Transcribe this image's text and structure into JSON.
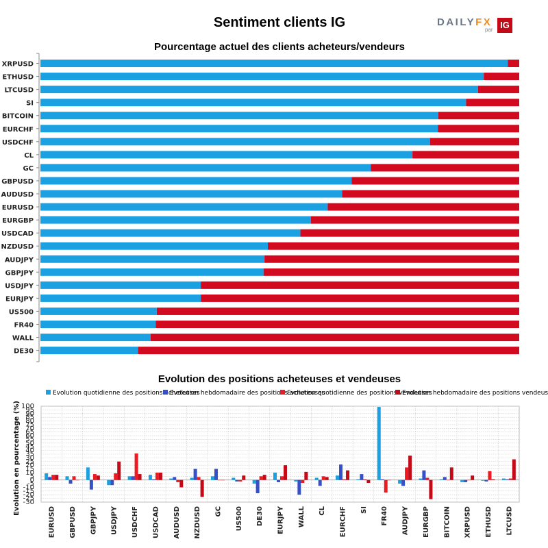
{
  "header": {
    "title": "Sentiment clients IG",
    "logo_brand_a": "DAILY",
    "logo_brand_b": "FX",
    "logo_par": "par",
    "logo_ig": "IG"
  },
  "colors": {
    "buyers": "#1ba0e2",
    "sellers": "#d10a1f",
    "daily_buy": "#1ba0e2",
    "weekly_buy": "#3651c8",
    "daily_sell": "#ed1c24",
    "weekly_sell": "#c40a17"
  },
  "chart_data": [
    {
      "type": "bar",
      "orientation": "horizontal",
      "stacked": true,
      "title": "Pourcentage actuel des clients acheteurs/vendeurs",
      "categories": [
        "XRPUSD",
        "ETHUSD",
        "LTCUSD",
        "SI",
        "BITCOIN",
        "EURCHF",
        "USDCHF",
        "CL",
        "GC",
        "GBPUSD",
        "AUDUSD",
        "EURUSD",
        "EURGBP",
        "USDCAD",
        "NZDUSD",
        "AUDJPY",
        "GBPJPY",
        "USDJPY",
        "EURJPY",
        "US500",
        "FR40",
        "WALL",
        "DE30"
      ],
      "series": [
        {
          "values": [
            97.6,
            92.6,
            91.4,
            88.9,
            83.1,
            83.0,
            81.4,
            77.7,
            69.0,
            65.0,
            63.0,
            60.0,
            56.5,
            54.3,
            47.5,
            46.8,
            46.6,
            33.5,
            33.5,
            24.3,
            24.1,
            23.0,
            20.4
          ]
        },
        {
          "values": [
            2.4,
            7.4,
            8.6,
            11.1,
            16.9,
            17.0,
            18.6,
            22.3,
            31.0,
            35.0,
            37.0,
            40.0,
            43.5,
            45.7,
            52.5,
            53.2,
            53.4,
            66.5,
            66.5,
            75.7,
            75.9,
            77.0,
            79.6
          ]
        }
      ],
      "xlim": [
        0,
        100
      ]
    },
    {
      "type": "bar",
      "title": "Evolution des positions acheteuses et vendeuses",
      "ylabel": "Evolution en pourcentage (%)",
      "ylim": [
        -30,
        100
      ],
      "yticks": [
        -30,
        -25,
        -20,
        -15,
        -10,
        -5,
        0,
        5,
        10,
        15,
        20,
        25,
        30,
        35,
        40,
        45,
        50,
        55,
        60,
        65,
        70,
        75,
        80,
        85,
        90,
        95,
        100
      ],
      "grid": true,
      "legend_position": "top",
      "categories": [
        "EURUSD",
        "GBPUSD",
        "GBPJPY",
        "USDJPY",
        "USDCHF",
        "USDCAD",
        "AUDUSD",
        "NZDUSD",
        "GC",
        "US500",
        "DE30",
        "EURJPY",
        "WALL",
        "CL",
        "EURCHF",
        "SI",
        "FR40",
        "AUDJPY",
        "EURGBP",
        "BITCOIN",
        "XRPUSD",
        "ETHUSD",
        "LTCUSD"
      ],
      "series": [
        {
          "name": "Evolution quotidienne des positions acheteuses",
          "values": [
            9,
            5,
            17,
            -7,
            5,
            7,
            2,
            3,
            5,
            3,
            -5,
            10,
            -2,
            3,
            6,
            1,
            99,
            -5,
            2,
            1,
            -3,
            -1,
            2
          ]
        },
        {
          "name": "Evolution hebdomadaire des positions acheteuses",
          "values": [
            4,
            -5,
            -13,
            -7,
            5,
            1,
            4,
            15,
            15,
            -2,
            -18,
            -3,
            -20,
            -8,
            21,
            8,
            1,
            -8,
            13,
            4,
            -3,
            -2,
            1
          ]
        },
        {
          "name": "Evolution quotidienne des positions vendeuses",
          "values": [
            7,
            5,
            8,
            9,
            36,
            10,
            -3,
            4,
            0,
            -2,
            5,
            5,
            -4,
            5,
            1,
            1,
            -17,
            17,
            3,
            0,
            0,
            12,
            2
          ]
        },
        {
          "name": "Evolution hebdomadaire des positions vendeuses",
          "values": [
            7,
            0,
            6,
            25,
            8,
            10,
            -10,
            -23,
            0,
            6,
            7,
            20,
            11,
            4,
            13,
            -4,
            0,
            33,
            -26,
            17,
            6,
            1,
            28
          ]
        }
      ]
    }
  ]
}
